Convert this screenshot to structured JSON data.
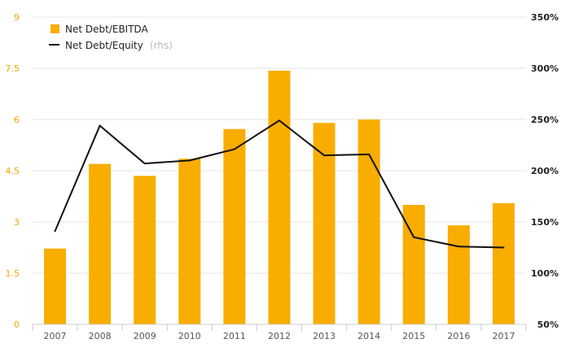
{
  "chart_data": {
    "type": "bar",
    "categories": [
      "2007",
      "2008",
      "2009",
      "2010",
      "2011",
      "2012",
      "2013",
      "2014",
      "2015",
      "2016",
      "2017"
    ],
    "series": [
      {
        "name": "Net Debt/EBITDA",
        "chart_type": "bar",
        "axis": "left",
        "color": "#f9ad00",
        "values": [
          2.22,
          4.7,
          4.35,
          4.85,
          5.72,
          7.43,
          5.9,
          6.0,
          3.5,
          2.9,
          3.55
        ]
      },
      {
        "name": "Net Debt/Equity",
        "name_suffix": "(rhs)",
        "chart_type": "line",
        "axis": "right",
        "color": "#111111",
        "values": [
          141,
          244,
          207,
          210,
          221,
          249,
          215,
          216,
          135,
          126,
          125
        ]
      }
    ],
    "y_left": {
      "ylim": [
        0,
        9
      ],
      "ticks": [
        "0",
        "1.5",
        "3",
        "4.5",
        "6",
        "7.5",
        "9"
      ]
    },
    "y_right": {
      "ylim": [
        50,
        350
      ],
      "ticks": [
        "50%",
        "100%",
        "150%",
        "200%",
        "250%",
        "300%",
        "350%"
      ]
    },
    "grid": true,
    "legend": "top-left"
  }
}
